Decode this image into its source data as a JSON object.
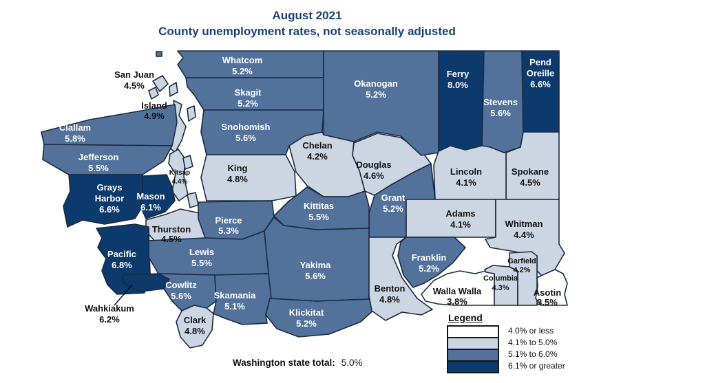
{
  "title": {
    "line1": "August 2021",
    "line2": "County unemployment rates, not seasonally adjusted"
  },
  "colors": {
    "cat0": "#ffffff",
    "cat1": "#ccd5e2",
    "cat2": "#52729c",
    "cat3": "#0d3a6d",
    "border": "#1c2a40",
    "title_text": "#1c4075",
    "label_on_dark": "#ffffff",
    "label_on_light": "#111111"
  },
  "map": {
    "counties": [
      {
        "id": "whatcom",
        "name": "Whatcom",
        "name_lines": [
          "Whatcom"
        ],
        "rate": "5.2%",
        "category": "cat2"
      },
      {
        "id": "san_juan",
        "name": "San Juan",
        "name_lines": [
          "San Juan"
        ],
        "rate": "4.5%",
        "category": "cat1"
      },
      {
        "id": "island",
        "name": "Island",
        "name_lines": [
          "Island"
        ],
        "rate": "4.9%",
        "category": "cat1"
      },
      {
        "id": "skagit",
        "name": "Skagit",
        "name_lines": [
          "Skagit"
        ],
        "rate": "5.2%",
        "category": "cat2"
      },
      {
        "id": "snohomish",
        "name": "Snohomish",
        "name_lines": [
          "Snohomish"
        ],
        "rate": "5.6%",
        "category": "cat2"
      },
      {
        "id": "clallam",
        "name": "Clallam",
        "name_lines": [
          "Clallam"
        ],
        "rate": "5.8%",
        "category": "cat2"
      },
      {
        "id": "jefferson",
        "name": "Jefferson",
        "name_lines": [
          "Jefferson"
        ],
        "rate": "5.5%",
        "category": "cat2"
      },
      {
        "id": "kitsap",
        "name": "Kitsap",
        "name_lines": [
          "Kitsap"
        ],
        "rate": "4.4%",
        "category": "cat1"
      },
      {
        "id": "king",
        "name": "King",
        "name_lines": [
          "King"
        ],
        "rate": "4.8%",
        "category": "cat1"
      },
      {
        "id": "chelan",
        "name": "Chelan",
        "name_lines": [
          "Chelan"
        ],
        "rate": "4.2%",
        "category": "cat1"
      },
      {
        "id": "douglas",
        "name": "Douglas",
        "name_lines": [
          "Douglas"
        ],
        "rate": "4.6%",
        "category": "cat1"
      },
      {
        "id": "okanogan",
        "name": "Okanogan",
        "name_lines": [
          "Okanogan"
        ],
        "rate": "5.2%",
        "category": "cat2"
      },
      {
        "id": "ferry",
        "name": "Ferry",
        "name_lines": [
          "Ferry"
        ],
        "rate": "8.0%",
        "category": "cat3"
      },
      {
        "id": "stevens",
        "name": "Stevens",
        "name_lines": [
          "Stevens"
        ],
        "rate": "5.6%",
        "category": "cat2"
      },
      {
        "id": "pend_oreille",
        "name": "Pend Oreille",
        "name_lines": [
          "Pend",
          "Oreille"
        ],
        "rate": "6.6%",
        "category": "cat3"
      },
      {
        "id": "spokane",
        "name": "Spokane",
        "name_lines": [
          "Spokane"
        ],
        "rate": "4.5%",
        "category": "cat1"
      },
      {
        "id": "lincoln",
        "name": "Lincoln",
        "name_lines": [
          "Lincoln"
        ],
        "rate": "4.1%",
        "category": "cat1"
      },
      {
        "id": "grant",
        "name": "Grant",
        "name_lines": [
          "Grant"
        ],
        "rate": "5.2%",
        "category": "cat2"
      },
      {
        "id": "adams",
        "name": "Adams",
        "name_lines": [
          "Adams"
        ],
        "rate": "4.1%",
        "category": "cat1"
      },
      {
        "id": "whitman",
        "name": "Whitman",
        "name_lines": [
          "Whitman"
        ],
        "rate": "4.4%",
        "category": "cat1"
      },
      {
        "id": "grays_harbor",
        "name": "Grays Harbor",
        "name_lines": [
          "Grays",
          "Harbor"
        ],
        "rate": "6.6%",
        "category": "cat3"
      },
      {
        "id": "mason",
        "name": "Mason",
        "name_lines": [
          "Mason"
        ],
        "rate": "6.1%",
        "category": "cat3"
      },
      {
        "id": "thurston",
        "name": "Thurston",
        "name_lines": [
          "Thurston"
        ],
        "rate": "4.5%",
        "category": "cat1"
      },
      {
        "id": "pierce",
        "name": "Pierce",
        "name_lines": [
          "Pierce"
        ],
        "rate": "5.3%",
        "category": "cat2"
      },
      {
        "id": "kittitas",
        "name": "Kittitas",
        "name_lines": [
          "Kittitas"
        ],
        "rate": "5.5%",
        "category": "cat2"
      },
      {
        "id": "yakima",
        "name": "Yakima",
        "name_lines": [
          "Yakima"
        ],
        "rate": "5.6%",
        "category": "cat2"
      },
      {
        "id": "pacific",
        "name": "Pacific",
        "name_lines": [
          "Pacific"
        ],
        "rate": "6.8%",
        "category": "cat3"
      },
      {
        "id": "lewis",
        "name": "Lewis",
        "name_lines": [
          "Lewis"
        ],
        "rate": "5.5%",
        "category": "cat2"
      },
      {
        "id": "wahkiakum",
        "name": "Wahkiakum",
        "name_lines": [
          "Wahkiakum"
        ],
        "rate": "6.2%",
        "category": "cat3"
      },
      {
        "id": "cowlitz",
        "name": "Cowlitz",
        "name_lines": [
          "Cowlitz"
        ],
        "rate": "5.6%",
        "category": "cat2"
      },
      {
        "id": "skamania",
        "name": "Skamania",
        "name_lines": [
          "Skamania"
        ],
        "rate": "5.1%",
        "category": "cat2"
      },
      {
        "id": "clark",
        "name": "Clark",
        "name_lines": [
          "Clark"
        ],
        "rate": "4.8%",
        "category": "cat1"
      },
      {
        "id": "klickitat",
        "name": "Klickitat",
        "name_lines": [
          "Klickitat"
        ],
        "rate": "5.2%",
        "category": "cat2"
      },
      {
        "id": "benton",
        "name": "Benton",
        "name_lines": [
          "Benton"
        ],
        "rate": "4.8%",
        "category": "cat1"
      },
      {
        "id": "franklin",
        "name": "Franklin",
        "name_lines": [
          "Franklin"
        ],
        "rate": "5.2%",
        "category": "cat2"
      },
      {
        "id": "walla_walla",
        "name": "Walla Walla",
        "name_lines": [
          "Walla Walla"
        ],
        "rate": "3.8%",
        "category": "cat0"
      },
      {
        "id": "columbia",
        "name": "Columbia",
        "name_lines": [
          "Columbia"
        ],
        "rate": "4.3%",
        "category": "cat1"
      },
      {
        "id": "garfield",
        "name": "Garfield",
        "name_lines": [
          "Garfield"
        ],
        "rate": "4.2%",
        "category": "cat1"
      },
      {
        "id": "asotin",
        "name": "Asotin",
        "name_lines": [
          "Asotin"
        ],
        "rate": "3.5%",
        "category": "cat0"
      }
    ]
  },
  "legend": {
    "title": "Legend",
    "items": [
      {
        "label": "4.0% or less",
        "category": "cat0"
      },
      {
        "label": "4.1% to 5.0%",
        "category": "cat1"
      },
      {
        "label": "5.1% to 6.0%",
        "category": "cat2"
      },
      {
        "label": "6.1% or greater",
        "category": "cat3"
      }
    ]
  },
  "footer": {
    "label": "Washington state total:",
    "value": "5.0%"
  }
}
